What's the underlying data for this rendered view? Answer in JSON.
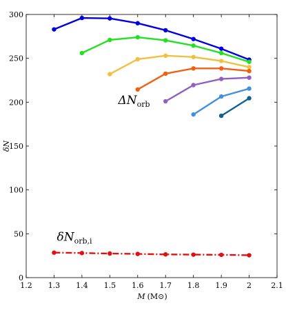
{
  "chart_data": {
    "type": "line",
    "xlabel": "M (M⊙)",
    "xlabel_var": "M",
    "xlabel_unit": "(M⊙)",
    "ylabel": "δN",
    "xlim": [
      1.2,
      2.1
    ],
    "ylim": [
      0,
      300
    ],
    "xticks": [
      1.2,
      1.3,
      1.4,
      1.5,
      1.6,
      1.7,
      1.8,
      1.9,
      2.0,
      2.1
    ],
    "xtick_labels": [
      "1.2",
      "1.3",
      "1.4",
      "1.5",
      "1.6",
      "1.7",
      "1.8",
      "1.9",
      "2",
      "2.1"
    ],
    "yticks": [
      0,
      50,
      100,
      150,
      200,
      250,
      300
    ],
    "ytick_labels": [
      "0",
      "50",
      "100",
      "150",
      "200",
      "250",
      "300"
    ],
    "grid": false,
    "annotations": [
      {
        "text_main": "ΔN",
        "text_sub": "orb",
        "x": 1.53,
        "y": 198
      },
      {
        "text_main": "δN",
        "text_sub": "orb,i",
        "x": 1.31,
        "y": 42
      }
    ],
    "series": [
      {
        "color": "#0000e0",
        "dashed": false,
        "x": [
          1.3,
          1.4,
          1.5,
          1.6,
          1.7,
          1.8,
          1.9,
          2.0
        ],
        "y": [
          283,
          296,
          295.5,
          290,
          282,
          272,
          261,
          248.5
        ]
      },
      {
        "color": "#22e022",
        "dashed": false,
        "x": [
          1.4,
          1.5,
          1.6,
          1.7,
          1.8,
          1.9,
          2.0
        ],
        "y": [
          256,
          271,
          274,
          270.5,
          264.5,
          256,
          246
        ]
      },
      {
        "color": "#f0c040",
        "dashed": false,
        "x": [
          1.5,
          1.6,
          1.7,
          1.8,
          1.9,
          2.0
        ],
        "y": [
          232,
          249,
          253,
          251.5,
          247,
          240
        ]
      },
      {
        "color": "#f06010",
        "dashed": false,
        "x": [
          1.6,
          1.7,
          1.8,
          1.9,
          2.0
        ],
        "y": [
          214.5,
          232.5,
          238.5,
          238.5,
          235.5
        ]
      },
      {
        "color": "#9060c0",
        "dashed": false,
        "x": [
          1.7,
          1.8,
          1.9,
          2.0
        ],
        "y": [
          201,
          219.5,
          226.5,
          228
        ]
      },
      {
        "color": "#4090e0",
        "dashed": false,
        "x": [
          1.8,
          1.9,
          2.0
        ],
        "y": [
          186,
          206.5,
          215.5
        ]
      },
      {
        "color": "#106090",
        "dashed": false,
        "x": [
          1.9,
          2.0
        ],
        "y": [
          184.5,
          204.5
        ]
      },
      {
        "color": "#e01010",
        "dashed": true,
        "x": [
          1.3,
          1.4,
          1.5,
          1.6,
          1.7,
          1.8,
          1.9,
          2.0
        ],
        "y": [
          28.5,
          28,
          27.5,
          27,
          26.5,
          26.2,
          26,
          25.5
        ]
      }
    ]
  }
}
